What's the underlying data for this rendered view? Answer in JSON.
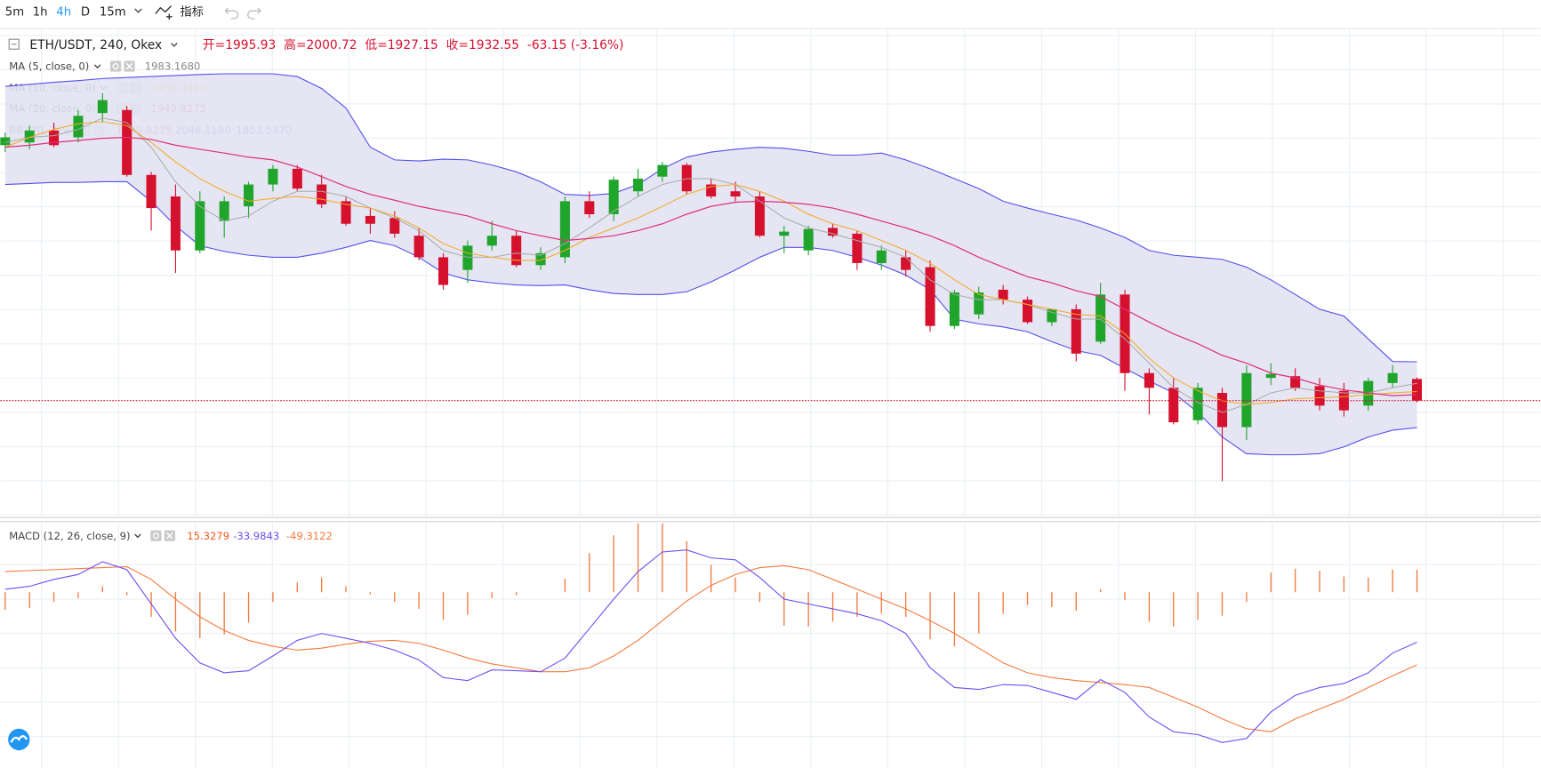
{
  "toolbar": {
    "intervals": [
      "5m",
      "1h",
      "4h",
      "D",
      "15m"
    ],
    "active": "4h",
    "indicators": "指标"
  },
  "chart_data": {
    "type": "candlestick",
    "symbol": "ETH/USDT, 240, Okex",
    "ohlc_labels": [
      "开=",
      "高=",
      "低=",
      "收="
    ],
    "change": "-63.15 (-3.16%)",
    "up_color": "#1fa52b",
    "down_color": "#d6112e",
    "ylim": [
      1600,
      3000
    ],
    "grid": true,
    "open": [
      2680,
      2688,
      2723,
      2703,
      2774,
      2783,
      2593,
      2530,
      2372,
      2458,
      2501,
      2565,
      2611,
      2565,
      2516,
      2473,
      2467,
      2415,
      2352,
      2315,
      2386,
      2415,
      2329,
      2352,
      2516,
      2478,
      2545,
      2588,
      2622,
      2565,
      2545,
      2530,
      2415,
      2372,
      2438,
      2421,
      2335,
      2352,
      2323,
      2151,
      2185,
      2257,
      2228,
      2162,
      2200,
      2105,
      2243,
      2013,
      1970,
      1875,
      1955,
      1855,
      1999,
      2004,
      1975,
      1961,
      1918,
      1984,
      1995.93
    ],
    "high": [
      2717,
      2737,
      2746,
      2783,
      2832,
      2795,
      2602,
      2565,
      2545,
      2530,
      2573,
      2622,
      2622,
      2593,
      2530,
      2496,
      2487,
      2438,
      2364,
      2401,
      2458,
      2430,
      2381,
      2530,
      2545,
      2588,
      2611,
      2631,
      2628,
      2582,
      2573,
      2545,
      2444,
      2444,
      2450,
      2430,
      2386,
      2372,
      2343,
      2257,
      2266,
      2271,
      2237,
      2200,
      2214,
      2277,
      2257,
      2027,
      1999,
      1984,
      1970,
      2036,
      2042,
      2027,
      1999,
      1984,
      1999,
      2036,
      2000.72
    ],
    "low": [
      2660,
      2668,
      2674,
      2688,
      2746,
      2588,
      2430,
      2306,
      2364,
      2409,
      2467,
      2545,
      2545,
      2496,
      2444,
      2421,
      2409,
      2343,
      2257,
      2277,
      2372,
      2323,
      2315,
      2335,
      2467,
      2458,
      2530,
      2573,
      2536,
      2524,
      2516,
      2410,
      2364,
      2358,
      2409,
      2315,
      2315,
      2295,
      2134,
      2142,
      2171,
      2214,
      2157,
      2151,
      2047,
      2099,
      1961,
      1892,
      1863,
      1863,
      1697,
      1817,
      1978,
      1961,
      1904,
      1886,
      1904,
      1970,
      1927.15
    ],
    "close": [
      2703,
      2723,
      2680,
      2766,
      2812,
      2593,
      2496,
      2372,
      2516,
      2516,
      2565,
      2611,
      2553,
      2507,
      2450,
      2450,
      2421,
      2352,
      2271,
      2386,
      2415,
      2329,
      2364,
      2516,
      2478,
      2579,
      2582,
      2622,
      2545,
      2530,
      2530,
      2415,
      2427,
      2435,
      2415,
      2335,
      2372,
      2315,
      2151,
      2249,
      2249,
      2228,
      2162,
      2200,
      2070,
      2243,
      2013,
      1970,
      1869,
      1970,
      1855,
      2013,
      2010,
      1970,
      1918,
      1904,
      1990,
      2013,
      1932.55
    ],
    "overlays": [
      {
        "name": "MA (5, close, 0)",
        "color": "#a9a9a9",
        "last_value_label": "1983.1680",
        "values": [
          2688,
          2703,
          2708,
          2726,
          2760,
          2746,
          2674,
          2573,
          2501,
          2458,
          2473,
          2516,
          2545,
          2545,
          2530,
          2496,
          2467,
          2430,
          2372,
          2352,
          2352,
          2364,
          2358,
          2392,
          2438,
          2487,
          2530,
          2565,
          2582,
          2582,
          2565,
          2516,
          2467,
          2438,
          2421,
          2401,
          2381,
          2352,
          2286,
          2243,
          2228,
          2228,
          2214,
          2191,
          2171,
          2171,
          2113,
          2042,
          1970,
          1927,
          1898,
          1921,
          1955,
          1970,
          1961,
          1955,
          1955,
          1970,
          1983.168
        ]
      },
      {
        "name": "MA (10, close, 0)",
        "color": "#f3a91f",
        "last_value_label": "1959.0400",
        "values": [
          2674,
          2703,
          2726,
          2743,
          2749,
          2737,
          2688,
          2631,
          2582,
          2545,
          2516,
          2524,
          2530,
          2522,
          2507,
          2496,
          2473,
          2438,
          2392,
          2364,
          2352,
          2343,
          2343,
          2372,
          2410,
          2438,
          2467,
          2501,
          2536,
          2559,
          2565,
          2545,
          2516,
          2478,
          2450,
          2430,
          2401,
          2372,
          2335,
          2286,
          2243,
          2228,
          2214,
          2200,
          2185,
          2180,
          2128,
          2056,
          1999,
          1961,
          1932,
          1921,
          1927,
          1938,
          1941,
          1944,
          1950,
          1955,
          1959.04
        ]
      },
      {
        "name": "MA (20, close, 0)",
        "color": "#e0307c",
        "last_value_label": "1949.8275",
        "values": [
          2674,
          2680,
          2688,
          2694,
          2700,
          2703,
          2697,
          2680,
          2668,
          2657,
          2645,
          2637,
          2616,
          2588,
          2559,
          2536,
          2519,
          2501,
          2487,
          2473,
          2450,
          2430,
          2415,
          2401,
          2407,
          2415,
          2430,
          2450,
          2478,
          2501,
          2513,
          2516,
          2513,
          2507,
          2496,
          2478,
          2458,
          2438,
          2415,
          2386,
          2352,
          2323,
          2295,
          2277,
          2254,
          2237,
          2200,
          2162,
          2128,
          2099,
          2065,
          2042,
          2013,
          1999,
          1978,
          1964,
          1955,
          1947,
          1949.8275
        ]
      }
    ],
    "bb": {
      "name": "BB (20, 2)",
      "fill": "#e2e2f2",
      "band_color": "#5151ec",
      "middle_color": "#e0307c",
      "middle_label": "1949.8275",
      "upper_label": "2046.1180",
      "lower_label": "1853.5370",
      "upper": [
        2852,
        2858,
        2864,
        2869,
        2875,
        2878,
        2881,
        2884,
        2887,
        2889,
        2889,
        2889,
        2881,
        2846,
        2789,
        2674,
        2637,
        2634,
        2639,
        2637,
        2622,
        2602,
        2573,
        2536,
        2533,
        2539,
        2565,
        2611,
        2645,
        2660,
        2668,
        2674,
        2671,
        2662,
        2651,
        2651,
        2657,
        2637,
        2611,
        2582,
        2553,
        2516,
        2496,
        2478,
        2461,
        2438,
        2410,
        2372,
        2358,
        2352,
        2346,
        2323,
        2286,
        2243,
        2200,
        2180,
        2113,
        2047,
        2046.118
      ],
      "lower": [
        2565,
        2568,
        2571,
        2571,
        2573,
        2573,
        2516,
        2444,
        2386,
        2369,
        2358,
        2352,
        2352,
        2364,
        2381,
        2401,
        2386,
        2352,
        2306,
        2286,
        2277,
        2271,
        2269,
        2271,
        2257,
        2246,
        2243,
        2243,
        2251,
        2280,
        2315,
        2352,
        2381,
        2381,
        2372,
        2352,
        2329,
        2300,
        2257,
        2171,
        2157,
        2148,
        2134,
        2105,
        2079,
        2065,
        2027,
        1990,
        1955,
        1898,
        1826,
        1777,
        1774,
        1774,
        1777,
        1797,
        1826,
        1846,
        1853.537
      ]
    },
    "macd": {
      "name": "MACD (12, 26, close, 9)",
      "ylim": [
        -118,
        45
      ],
      "histogram": {
        "color": "#f2783c",
        "values": [
          -12,
          -10.7,
          -6.6,
          -4,
          4,
          -2,
          -16.7,
          -26.6,
          -31.3,
          -28.7,
          -20.6,
          -6.6,
          6.6,
          10,
          4,
          -1.4,
          -6.6,
          -11.3,
          -18.7,
          -15.3,
          -4,
          -2,
          0,
          9.3,
          26.6,
          38.6,
          46.7,
          46.6,
          34.7,
          18.6,
          10,
          -6.7,
          -22.7,
          -23.3,
          -20,
          -16.7,
          -14.6,
          -16.7,
          -32,
          -36.7,
          -28,
          -14.7,
          -8.6,
          -10,
          -12.7,
          2,
          -5.3,
          -20,
          -23.4,
          -18.7,
          -16,
          -6.6,
          13.4,
          16,
          14.6,
          10.7,
          10,
          15.4,
          15.3279
        ]
      },
      "dif": {
        "color": "#6f4ef5",
        "values": [
          2,
          4,
          8.7,
          12,
          20.7,
          15.3,
          -8,
          -31.3,
          -48,
          -54.7,
          -53.3,
          -43.3,
          -32.7,
          -28,
          -31.3,
          -34.7,
          -39.3,
          -46,
          -58,
          -60,
          -52.7,
          -53.3,
          -54,
          -44.7,
          -24.7,
          -4.7,
          14,
          27.3,
          28.7,
          23.3,
          22,
          10,
          -4.7,
          -8,
          -11.3,
          -14.7,
          -19.3,
          -28,
          -51.3,
          -64.7,
          -66,
          -62.7,
          -63.3,
          -68,
          -72.7,
          -59.3,
          -68,
          -84.7,
          -94.7,
          -96.7,
          -102,
          -99.3,
          -81.3,
          -70,
          -64.7,
          -62,
          -54.7,
          -41.3,
          -33.9843
        ]
      },
      "dea": {
        "color": "#f47a3c",
        "values": [
          14,
          14.7,
          15.3,
          16,
          16.7,
          17.3,
          8.7,
          -4.7,
          -16.7,
          -26,
          -32.7,
          -36.7,
          -39.3,
          -38,
          -35.3,
          -33.3,
          -32.7,
          -34.7,
          -39.3,
          -44.7,
          -48.7,
          -51.3,
          -54,
          -54,
          -51.3,
          -43.3,
          -32.7,
          -19.3,
          -6,
          4.7,
          12,
          16.7,
          18,
          15.3,
          8.7,
          2,
          -4.7,
          -11.3,
          -19.3,
          -28,
          -38,
          -48,
          -54.7,
          -58,
          -60,
          -61.3,
          -62.7,
          -64.7,
          -71.3,
          -78,
          -86,
          -92.7,
          -94.7,
          -86,
          -79.3,
          -72.7,
          -64.7,
          -56.7,
          -49.3122
        ]
      }
    }
  }
}
